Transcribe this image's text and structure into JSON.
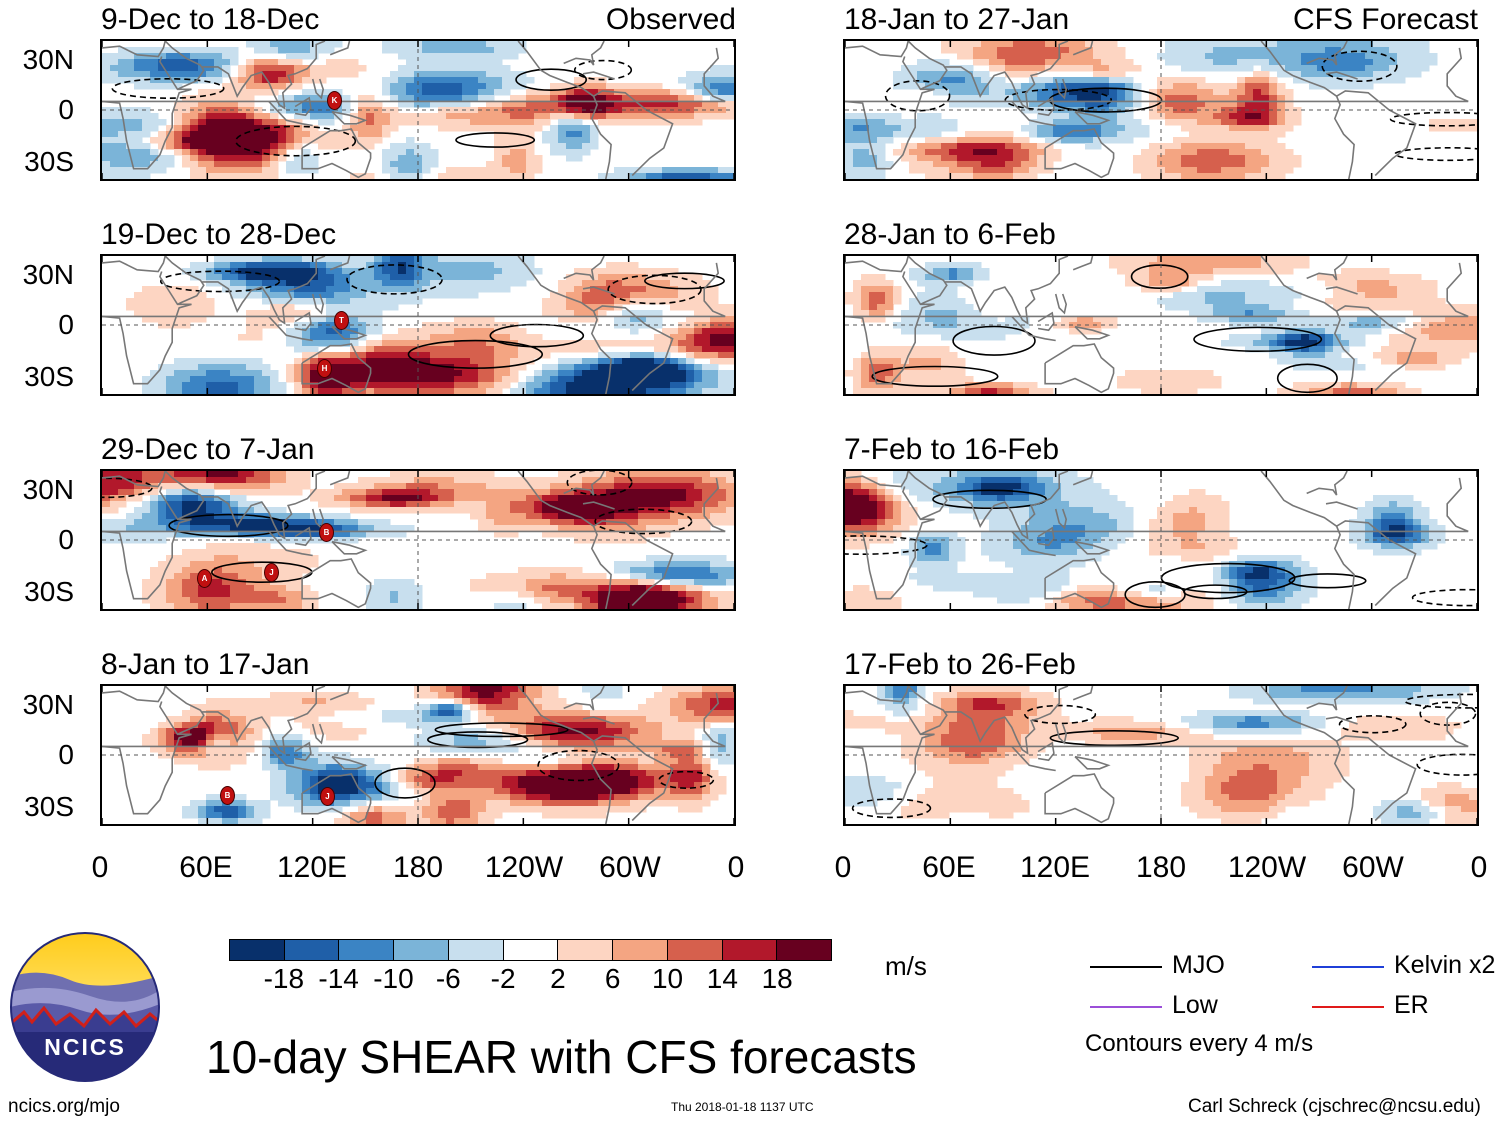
{
  "header": {
    "observed_tag": "Observed",
    "forecast_tag": "CFS Forecast"
  },
  "panels": {
    "left": [
      "9-Dec to 18-Dec",
      "19-Dec to 28-Dec",
      "29-Dec to 7-Jan",
      "8-Jan to 17-Jan"
    ],
    "right": [
      "18-Jan to 27-Jan",
      "28-Jan to 6-Feb",
      "7-Feb to 16-Feb",
      "17-Feb to 26-Feb"
    ]
  },
  "axes": {
    "lat_labels": [
      "30N",
      "0",
      "30S"
    ],
    "lon_labels": [
      "0",
      "60E",
      "120E",
      "180",
      "120W",
      "60W",
      "0"
    ]
  },
  "storm_markers": {
    "panel1": [
      "K"
    ],
    "panel2": [
      "T",
      "H"
    ],
    "panel3": [
      "B",
      "J",
      "A"
    ],
    "panel4": [
      "B",
      "J"
    ]
  },
  "colorbar": {
    "ticks": [
      "-18",
      "-14",
      "-10",
      "-6",
      "-2",
      "2",
      "6",
      "10",
      "14",
      "18"
    ],
    "colors": [
      "#08306b",
      "#1f5fa8",
      "#3b84c4",
      "#7bb4d8",
      "#c8dfee",
      "#ffffff",
      "#fdd5c2",
      "#f4a582",
      "#d6604d",
      "#b2182b",
      "#67001f"
    ],
    "units": "m/s"
  },
  "legend": {
    "items": [
      {
        "label": "MJO",
        "color": "#000000"
      },
      {
        "label": "Kelvin x2",
        "color": "#1f3fd8"
      },
      {
        "label": "Low",
        "color": "#9b4fd8"
      },
      {
        "label": "ER",
        "color": "#e01a1a"
      }
    ],
    "note": "Contours every 4 m/s"
  },
  "footer": {
    "title": "10-day SHEAR with CFS forecasts",
    "logo_text": "NCICS",
    "url": "ncics.org/mjo",
    "timestamp": "Thu 2018-01-18 1137 UTC",
    "credit": "Carl Schreck (cjschrec@ncsu.edu)"
  }
}
